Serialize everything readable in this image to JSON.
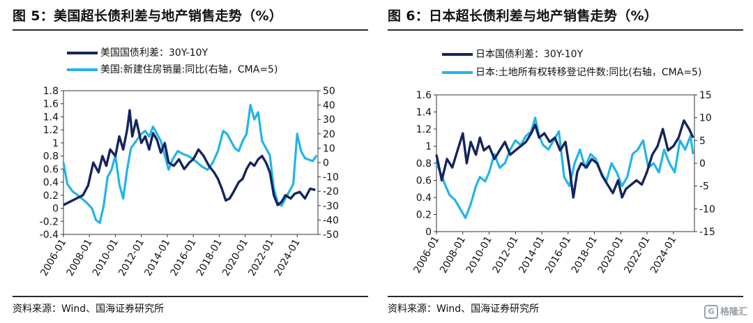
{
  "chart_data": [
    {
      "type": "line",
      "title": "图 5：美国超长债利差与地产销售走势（%）",
      "source": "资料来源：Wind、国海证券研究所",
      "x_tick_labels": [
        "2006-01",
        "2008-01",
        "2010-01",
        "2012-01",
        "2014-01",
        "2016-01",
        "2018-01",
        "2020-01",
        "2022-01",
        "2024-01"
      ],
      "x_range": [
        2006.0,
        2025.6
      ],
      "y_left": {
        "range": [
          -0.4,
          1.8
        ],
        "ticks": [
          "-0.4",
          "-0.2",
          "0",
          "0.2",
          "0.4",
          "0.6",
          "0.8",
          "1",
          "1.2",
          "1.4",
          "1.6",
          "1.8"
        ]
      },
      "y_right": {
        "range": [
          -50,
          50
        ],
        "ticks": [
          "-50",
          "-40",
          "-30",
          "-20",
          "-10",
          "0",
          "10",
          "20",
          "30",
          "40",
          "50"
        ]
      },
      "series": [
        {
          "name": "美国国债利差：30Y-10Y",
          "axis": "left",
          "color": "#14245e",
          "x": [
            2006.0,
            2006.5,
            2007.0,
            2007.5,
            2007.9,
            2008.3,
            2008.7,
            2009.0,
            2009.3,
            2009.6,
            2010.0,
            2010.3,
            2010.6,
            2010.9,
            2011.1,
            2011.3,
            2011.6,
            2012.0,
            2012.3,
            2012.6,
            2012.9,
            2013.2,
            2013.5,
            2013.8,
            2014.1,
            2014.5,
            2014.9,
            2015.3,
            2015.7,
            2016.0,
            2016.4,
            2016.8,
            2017.2,
            2017.6,
            2017.9,
            2018.2,
            2018.5,
            2018.8,
            2019.1,
            2019.5,
            2019.8,
            2020.1,
            2020.4,
            2020.7,
            2021.0,
            2021.3,
            2021.6,
            2021.9,
            2022.2,
            2022.5,
            2022.8,
            2023.1,
            2023.5,
            2023.8,
            2024.2,
            2024.6,
            2025.0,
            2025.4
          ],
          "values": [
            0.05,
            0.1,
            0.15,
            0.2,
            0.35,
            0.7,
            0.55,
            0.8,
            0.65,
            0.9,
            0.8,
            1.1,
            0.9,
            1.2,
            1.5,
            1.1,
            1.35,
            1.0,
            1.1,
            0.9,
            1.15,
            1.05,
            0.85,
            1.0,
            0.7,
            0.65,
            0.75,
            0.6,
            0.7,
            0.75,
            0.9,
            0.8,
            0.65,
            0.55,
            0.45,
            0.3,
            0.12,
            0.15,
            0.25,
            0.4,
            0.45,
            0.6,
            0.7,
            0.65,
            0.75,
            0.8,
            0.7,
            0.55,
            0.2,
            0.05,
            0.1,
            0.2,
            0.15,
            0.22,
            0.25,
            0.15,
            0.3,
            0.28
          ]
        },
        {
          "name": "美国:新建住房销量:同比(右轴，CMA=5)",
          "axis": "right",
          "color": "#22b4e8",
          "x": [
            2006.0,
            2006.3,
            2006.7,
            2007.0,
            2007.4,
            2007.8,
            2008.2,
            2008.5,
            2008.8,
            2009.1,
            2009.4,
            2009.7,
            2010.0,
            2010.3,
            2010.6,
            2010.9,
            2011.2,
            2011.6,
            2012.0,
            2012.3,
            2012.6,
            2012.9,
            2013.2,
            2013.5,
            2013.8,
            2014.1,
            2014.4,
            2014.8,
            2015.2,
            2015.5,
            2015.9,
            2016.3,
            2016.7,
            2017.1,
            2017.5,
            2017.9,
            2018.3,
            2018.6,
            2018.9,
            2019.2,
            2019.5,
            2019.8,
            2020.1,
            2020.4,
            2020.7,
            2021.0,
            2021.3,
            2021.6,
            2021.9,
            2022.2,
            2022.5,
            2022.8,
            2023.1,
            2023.4,
            2023.7,
            2024.0,
            2024.3,
            2024.6,
            2024.9,
            2025.2,
            2025.5
          ],
          "values": [
            0,
            -15,
            -20,
            -22,
            -25,
            -28,
            -32,
            -40,
            -42,
            -30,
            -10,
            -5,
            5,
            -15,
            -25,
            -5,
            10,
            15,
            20,
            22,
            18,
            25,
            20,
            15,
            5,
            -5,
            2,
            8,
            6,
            5,
            3,
            0,
            -3,
            -5,
            0,
            8,
            22,
            20,
            15,
            10,
            8,
            15,
            20,
            40,
            30,
            35,
            15,
            10,
            5,
            -18,
            -28,
            -30,
            -25,
            -20,
            -15,
            20,
            8,
            3,
            2,
            1,
            5
          ]
        }
      ]
    },
    {
      "type": "line",
      "title": "图 6：日本超长债利差与地产销售走势（%）",
      "source": "资料来源：Wind、国海证券研究所",
      "x_tick_labels": [
        "2006-01",
        "2008-01",
        "2010-01",
        "2012-01",
        "2014-01",
        "2016-01",
        "2018-01",
        "2020-01",
        "2022-01",
        "2024-01"
      ],
      "x_range": [
        2006.0,
        2025.6
      ],
      "y_left": {
        "range": [
          0,
          1.6
        ],
        "ticks": [
          "0",
          "0.2",
          "0.4",
          "0.6",
          "0.8",
          "1",
          "1.2",
          "1.4",
          "1.6"
        ]
      },
      "y_right": {
        "range": [
          -15,
          15
        ],
        "ticks": [
          "-15",
          "-10",
          "-5",
          "0",
          "5",
          "10",
          "15"
        ]
      },
      "series": [
        {
          "name": "日本国债利差：30Y-10Y",
          "axis": "left",
          "color": "#14245e",
          "x": [
            2006.0,
            2006.4,
            2006.8,
            2007.2,
            2007.6,
            2008.0,
            2008.3,
            2008.6,
            2009.0,
            2009.3,
            2009.6,
            2010.0,
            2010.4,
            2010.8,
            2011.2,
            2011.6,
            2012.0,
            2012.4,
            2012.8,
            2013.2,
            2013.5,
            2013.8,
            2014.2,
            2014.6,
            2015.0,
            2015.4,
            2015.8,
            2016.1,
            2016.4,
            2016.7,
            2017.0,
            2017.4,
            2017.8,
            2018.2,
            2018.6,
            2019.0,
            2019.4,
            2019.8,
            2020.1,
            2020.4,
            2020.8,
            2021.2,
            2021.6,
            2022.0,
            2022.4,
            2022.8,
            2023.2,
            2023.6,
            2024.0,
            2024.4,
            2024.8,
            2025.2,
            2025.5
          ],
          "values": [
            0.9,
            0.6,
            0.85,
            0.75,
            0.95,
            1.15,
            0.8,
            1.05,
            0.9,
            1.1,
            0.95,
            1.0,
            0.85,
            0.95,
            1.05,
            0.9,
            0.95,
            1.0,
            1.05,
            1.15,
            1.25,
            1.1,
            1.15,
            1.05,
            1.1,
            0.95,
            1.05,
            0.75,
            0.4,
            0.7,
            0.8,
            0.75,
            0.85,
            0.8,
            0.65,
            0.55,
            0.45,
            0.6,
            0.4,
            0.5,
            0.55,
            0.6,
            0.55,
            0.7,
            0.9,
            1.0,
            1.2,
            0.95,
            1.0,
            1.1,
            1.3,
            1.2,
            1.1
          ]
        },
        {
          "name": "日本:土地所有权转移登记件数:同比(右轴，CMA=5)",
          "axis": "right",
          "color": "#22b4e8",
          "x": [
            2006.0,
            2006.3,
            2006.7,
            2007.0,
            2007.4,
            2007.8,
            2008.2,
            2008.6,
            2009.0,
            2009.3,
            2009.7,
            2010.0,
            2010.4,
            2010.8,
            2011.2,
            2011.6,
            2012.0,
            2012.4,
            2012.8,
            2013.2,
            2013.5,
            2013.8,
            2014.1,
            2014.5,
            2014.9,
            2015.3,
            2015.7,
            2016.1,
            2016.5,
            2016.9,
            2017.3,
            2017.7,
            2018.1,
            2018.5,
            2018.9,
            2019.3,
            2019.7,
            2020.1,
            2020.5,
            2020.9,
            2021.3,
            2021.7,
            2022.1,
            2022.5,
            2022.9,
            2023.3,
            2023.7,
            2024.1,
            2024.5,
            2024.9,
            2025.3,
            2025.5
          ],
          "values": [
            0,
            -2,
            -5,
            -7,
            -8,
            -10,
            -12,
            -9,
            -5,
            -3,
            -4,
            -2,
            2,
            -1,
            0,
            3,
            5,
            4,
            6,
            7,
            10,
            6,
            4,
            3,
            5,
            7,
            -3,
            -5,
            0,
            3,
            -1,
            2,
            1,
            -2,
            -4,
            0,
            -2,
            -5,
            -3,
            2,
            3,
            5,
            -1,
            0,
            -2,
            3,
            0,
            -2,
            5,
            3,
            6,
            2
          ]
        }
      ]
    }
  ],
  "panels": [
    {
      "title": "图 5：美国超长债利差与地产销售走势（%）",
      "legend": [
        "美国国债利差：30Y-10Y",
        "美国:新建住房销量:同比(右轴，CMA=5)"
      ],
      "source": "资料来源：Wind、国海证券研究所"
    },
    {
      "title": "图 6：日本超长债利差与地产销售走势（%）",
      "legend": [
        "日本国债利差：30Y-10Y",
        "日本:土地所有权转移登记件数:同比(右轴，CMA=5)"
      ],
      "source": "资料来源：Wind、国海证券研究所"
    }
  ],
  "watermark": {
    "icon": "G",
    "text": "格隆汇"
  }
}
